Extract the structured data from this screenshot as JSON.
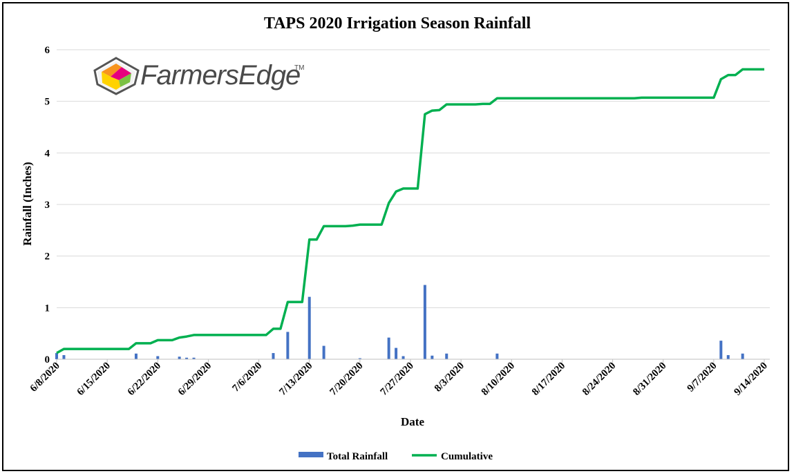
{
  "logo": {
    "name": "FarmersEdge",
    "tm": "TM"
  },
  "colors": {
    "bar": "#4472C4",
    "line": "#00B050",
    "grid": "#D9D9D9",
    "axis": "#BFBFBF"
  },
  "chart_data": {
    "type": "bar+line",
    "title": "TAPS 2020 Irrigation Season Rainfall",
    "xlabel": "Date",
    "ylabel": "Rainfall (Inches)",
    "ylim": [
      0,
      6
    ],
    "yticks": [
      "0",
      "1",
      "2",
      "3",
      "4",
      "5",
      "6"
    ],
    "x_start": "6/8/2020",
    "x_end": "9/15/2020",
    "xticks": [
      {
        "day": 0,
        "label": "6/8/2020"
      },
      {
        "day": 7,
        "label": "6/15/2020"
      },
      {
        "day": 14,
        "label": "6/22/2020"
      },
      {
        "day": 21,
        "label": "6/29/2020"
      },
      {
        "day": 28,
        "label": "7/6/2020"
      },
      {
        "day": 35,
        "label": "7/13/2020"
      },
      {
        "day": 42,
        "label": "7/20/2020"
      },
      {
        "day": 49,
        "label": "7/27/2020"
      },
      {
        "day": 56,
        "label": "8/3/2020"
      },
      {
        "day": 63,
        "label": "8/10/2020"
      },
      {
        "day": 70,
        "label": "8/17/2020"
      },
      {
        "day": 77,
        "label": "8/24/2020"
      },
      {
        "day": 84,
        "label": "8/31/2020"
      },
      {
        "day": 91,
        "label": "9/7/2020"
      },
      {
        "day": 98,
        "label": "9/14/2020"
      }
    ],
    "legend": [
      "Total Rainfall",
      "Cumulative"
    ],
    "series": [
      {
        "name": "Total Rainfall",
        "type": "bar",
        "points": [
          {
            "day": 0,
            "value": 0.12
          },
          {
            "day": 1,
            "value": 0.08
          },
          {
            "day": 11,
            "value": 0.11
          },
          {
            "day": 14,
            "value": 0.06
          },
          {
            "day": 17,
            "value": 0.05
          },
          {
            "day": 18,
            "value": 0.03
          },
          {
            "day": 19,
            "value": 0.03
          },
          {
            "day": 30,
            "value": 0.12
          },
          {
            "day": 32,
            "value": 0.53
          },
          {
            "day": 35,
            "value": 1.21
          },
          {
            "day": 37,
            "value": 0.26
          },
          {
            "day": 42,
            "value": 0.02
          },
          {
            "day": 46,
            "value": 0.42
          },
          {
            "day": 47,
            "value": 0.22
          },
          {
            "day": 48,
            "value": 0.06
          },
          {
            "day": 51,
            "value": 1.44
          },
          {
            "day": 52,
            "value": 0.07
          },
          {
            "day": 54,
            "value": 0.11
          },
          {
            "day": 61,
            "value": 0.11
          },
          {
            "day": 92,
            "value": 0.36
          },
          {
            "day": 93,
            "value": 0.08
          },
          {
            "day": 95,
            "value": 0.11
          }
        ]
      },
      {
        "name": "Cumulative",
        "type": "line",
        "points": [
          {
            "day": 0,
            "value": 0.12
          },
          {
            "day": 1,
            "value": 0.2
          },
          {
            "day": 10,
            "value": 0.2
          },
          {
            "day": 11,
            "value": 0.31
          },
          {
            "day": 13,
            "value": 0.31
          },
          {
            "day": 14,
            "value": 0.37
          },
          {
            "day": 16,
            "value": 0.37
          },
          {
            "day": 17,
            "value": 0.42
          },
          {
            "day": 18,
            "value": 0.44
          },
          {
            "day": 19,
            "value": 0.47
          },
          {
            "day": 29,
            "value": 0.47
          },
          {
            "day": 30,
            "value": 0.59
          },
          {
            "day": 31,
            "value": 0.59
          },
          {
            "day": 32,
            "value": 1.11
          },
          {
            "day": 34,
            "value": 1.11
          },
          {
            "day": 35,
            "value": 2.32
          },
          {
            "day": 36,
            "value": 2.32
          },
          {
            "day": 37,
            "value": 2.58
          },
          {
            "day": 40,
            "value": 2.58
          },
          {
            "day": 41,
            "value": 2.59
          },
          {
            "day": 42,
            "value": 2.61
          },
          {
            "day": 45,
            "value": 2.61
          },
          {
            "day": 46,
            "value": 3.03
          },
          {
            "day": 47,
            "value": 3.25
          },
          {
            "day": 48,
            "value": 3.31
          },
          {
            "day": 50,
            "value": 3.31
          },
          {
            "day": 51,
            "value": 4.75
          },
          {
            "day": 52,
            "value": 4.82
          },
          {
            "day": 53,
            "value": 4.83
          },
          {
            "day": 54,
            "value": 4.94
          },
          {
            "day": 58,
            "value": 4.94
          },
          {
            "day": 59,
            "value": 4.95
          },
          {
            "day": 60,
            "value": 4.95
          },
          {
            "day": 61,
            "value": 5.06
          },
          {
            "day": 80,
            "value": 5.06
          },
          {
            "day": 81,
            "value": 5.07
          },
          {
            "day": 91,
            "value": 5.07
          },
          {
            "day": 92,
            "value": 5.43
          },
          {
            "day": 93,
            "value": 5.51
          },
          {
            "day": 94,
            "value": 5.51
          },
          {
            "day": 95,
            "value": 5.62
          },
          {
            "day": 98,
            "value": 5.62
          }
        ]
      }
    ]
  }
}
